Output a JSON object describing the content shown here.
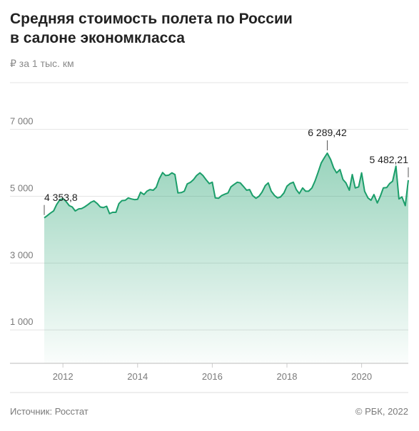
{
  "chart_data": {
    "type": "area",
    "title": [
      "Средняя стоимость полета по России",
      "в салоне экономкласса"
    ],
    "subtitle": "₽ за 1 тыс. км",
    "source": "Источник: Росстат",
    "credit": "© РБК, 2022",
    "color": "#1b9e6a",
    "grid": true,
    "xlim": [
      2011.5,
      2021.25
    ],
    "xticks": [
      2012,
      2014,
      2016,
      2018,
      2020
    ],
    "ylim": [
      0,
      8400
    ],
    "yticks": [
      {
        "value": 1000,
        "label": "1 000"
      },
      {
        "value": 3000,
        "label": "3 000"
      },
      {
        "value": 5000,
        "label": "5 000"
      },
      {
        "value": 7000,
        "label": "7 000"
      }
    ],
    "x": [
      2011.5,
      2011.58,
      2011.67,
      2011.75,
      2011.83,
      2011.92,
      2012,
      2012.08,
      2012.17,
      2012.25,
      2012.33,
      2012.42,
      2012.5,
      2012.58,
      2012.67,
      2012.75,
      2012.83,
      2012.92,
      2013,
      2013.08,
      2013.17,
      2013.25,
      2013.33,
      2013.42,
      2013.5,
      2013.58,
      2013.67,
      2013.75,
      2013.83,
      2013.92,
      2014,
      2014.08,
      2014.17,
      2014.25,
      2014.33,
      2014.42,
      2014.5,
      2014.58,
      2014.67,
      2014.75,
      2014.83,
      2014.92,
      2015,
      2015.08,
      2015.17,
      2015.25,
      2015.33,
      2015.42,
      2015.5,
      2015.58,
      2015.67,
      2015.75,
      2015.83,
      2015.92,
      2016,
      2016.08,
      2016.17,
      2016.25,
      2016.33,
      2016.42,
      2016.5,
      2016.58,
      2016.67,
      2016.75,
      2016.83,
      2016.92,
      2017,
      2017.08,
      2017.17,
      2017.25,
      2017.33,
      2017.42,
      2017.5,
      2017.58,
      2017.67,
      2017.75,
      2017.83,
      2017.92,
      2018,
      2018.08,
      2018.17,
      2018.25,
      2018.33,
      2018.42,
      2018.5,
      2018.58,
      2018.67,
      2018.75,
      2018.83,
      2018.92,
      2019,
      2019.08,
      2019.17,
      2019.25,
      2019.33,
      2019.42,
      2019.5,
      2019.58,
      2019.67,
      2019.75,
      2019.83,
      2019.92,
      2020,
      2020.08,
      2020.17,
      2020.25,
      2020.33,
      2020.42,
      2020.5,
      2020.58,
      2020.67,
      2020.75,
      2020.83,
      2020.92,
      2021,
      2021.08,
      2021.17,
      2021.25
    ],
    "values": [
      4353.8,
      4420,
      4500,
      4560,
      4750,
      4900,
      4930,
      4850,
      4720,
      4680,
      4560,
      4620,
      4630,
      4680,
      4750,
      4820,
      4860,
      4780,
      4680,
      4660,
      4700,
      4480,
      4520,
      4520,
      4780,
      4870,
      4880,
      4950,
      4920,
      4900,
      4910,
      5120,
      5050,
      5150,
      5200,
      5180,
      5270,
      5520,
      5710,
      5620,
      5630,
      5700,
      5650,
      5100,
      5110,
      5150,
      5370,
      5420,
      5500,
      5620,
      5700,
      5620,
      5500,
      5380,
      5420,
      4950,
      4940,
      5020,
      5060,
      5100,
      5280,
      5350,
      5420,
      5400,
      5300,
      5180,
      5200,
      5020,
      4940,
      5000,
      5120,
      5320,
      5400,
      5150,
      5020,
      4950,
      4980,
      5100,
      5300,
      5380,
      5420,
      5200,
      5080,
      5250,
      5150,
      5150,
      5250,
      5450,
      5700,
      6000,
      6150,
      6289.42,
      6100,
      5850,
      5700,
      5800,
      5500,
      5400,
      5180,
      5650,
      5250,
      5280,
      5700,
      5150,
      4950,
      4880,
      5050,
      4800,
      5000,
      5250,
      5260,
      5380,
      5450,
      5900,
      4920,
      4980,
      4720,
      5482.21
    ],
    "value_labels": [
      "4 353,8",
      null,
      null,
      null,
      null,
      null,
      null,
      null,
      null,
      null,
      null,
      null,
      null,
      null,
      null,
      null,
      null,
      null,
      null,
      null,
      null,
      null,
      null,
      null,
      null,
      null,
      null,
      null,
      null,
      null,
      null,
      null,
      null,
      null,
      null,
      null,
      null,
      null,
      null,
      null,
      null,
      null,
      null,
      null,
      null,
      null,
      null,
      null,
      null,
      null,
      null,
      null,
      null,
      null,
      null,
      null,
      null,
      null,
      null,
      null,
      null,
      null,
      null,
      null,
      null,
      null,
      null,
      null,
      null,
      null,
      null,
      null,
      null,
      null,
      null,
      null,
      null,
      null,
      null,
      null,
      null,
      null,
      null,
      null,
      null,
      null,
      null,
      null,
      null,
      null,
      null,
      "6 289,42",
      null,
      null,
      null,
      null,
      null,
      null,
      null,
      null,
      null,
      null,
      null,
      null,
      null,
      null,
      null,
      null,
      null,
      null,
      null,
      null,
      null,
      null,
      null,
      null,
      null,
      "5 482,21"
    ]
  }
}
